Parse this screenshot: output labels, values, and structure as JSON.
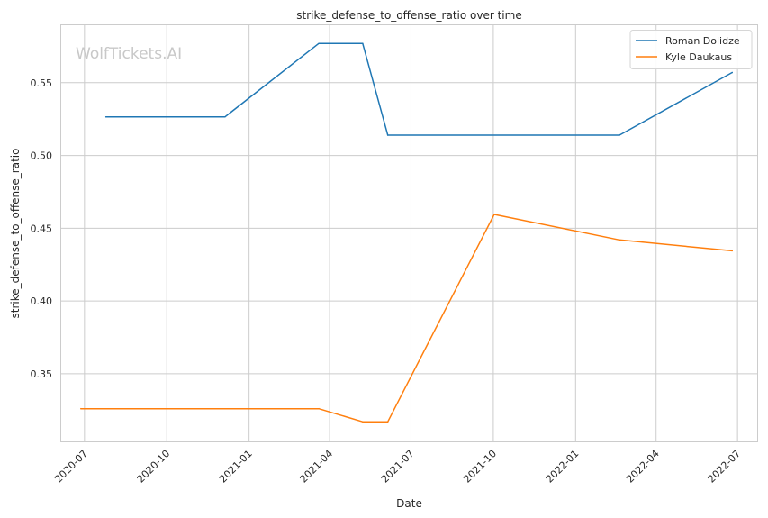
{
  "chart_data": {
    "type": "line",
    "title": "strike_defense_to_offense_ratio over time",
    "xlabel": "Date",
    "ylabel": "strike_defense_to_offense_ratio",
    "watermark": "WolfTickets.AI",
    "grid": true,
    "legend_position": "top-right",
    "xlim": [
      "2020-06-05",
      "2022-07-23"
    ],
    "ylim": [
      0.3035,
      0.5895
    ],
    "x_ticks": [
      "2020-07",
      "2020-10",
      "2021-01",
      "2021-04",
      "2021-07",
      "2021-10",
      "2022-01",
      "2022-04",
      "2022-07"
    ],
    "y_ticks": [
      "0.35",
      "0.40",
      "0.45",
      "0.50",
      "0.55"
    ],
    "series": [
      {
        "name": "Roman Dolidze",
        "color": "#1f77b4",
        "points": [
          [
            "2020-07-25",
            0.5265
          ],
          [
            "2020-12-05",
            0.5265
          ],
          [
            "2021-03-20",
            0.577
          ],
          [
            "2021-05-08",
            0.577
          ],
          [
            "2021-06-05",
            0.514
          ],
          [
            "2022-02-19",
            0.514
          ],
          [
            "2022-06-25",
            0.557
          ]
        ]
      },
      {
        "name": "Kyle Daukaus",
        "color": "#ff7f0e",
        "points": [
          [
            "2020-06-27",
            0.326
          ],
          [
            "2021-03-20",
            0.326
          ],
          [
            "2021-05-08",
            0.317
          ],
          [
            "2021-06-05",
            0.317
          ],
          [
            "2021-10-02",
            0.4595
          ],
          [
            "2022-02-19",
            0.442
          ],
          [
            "2022-06-25",
            0.4345
          ]
        ]
      }
    ]
  }
}
